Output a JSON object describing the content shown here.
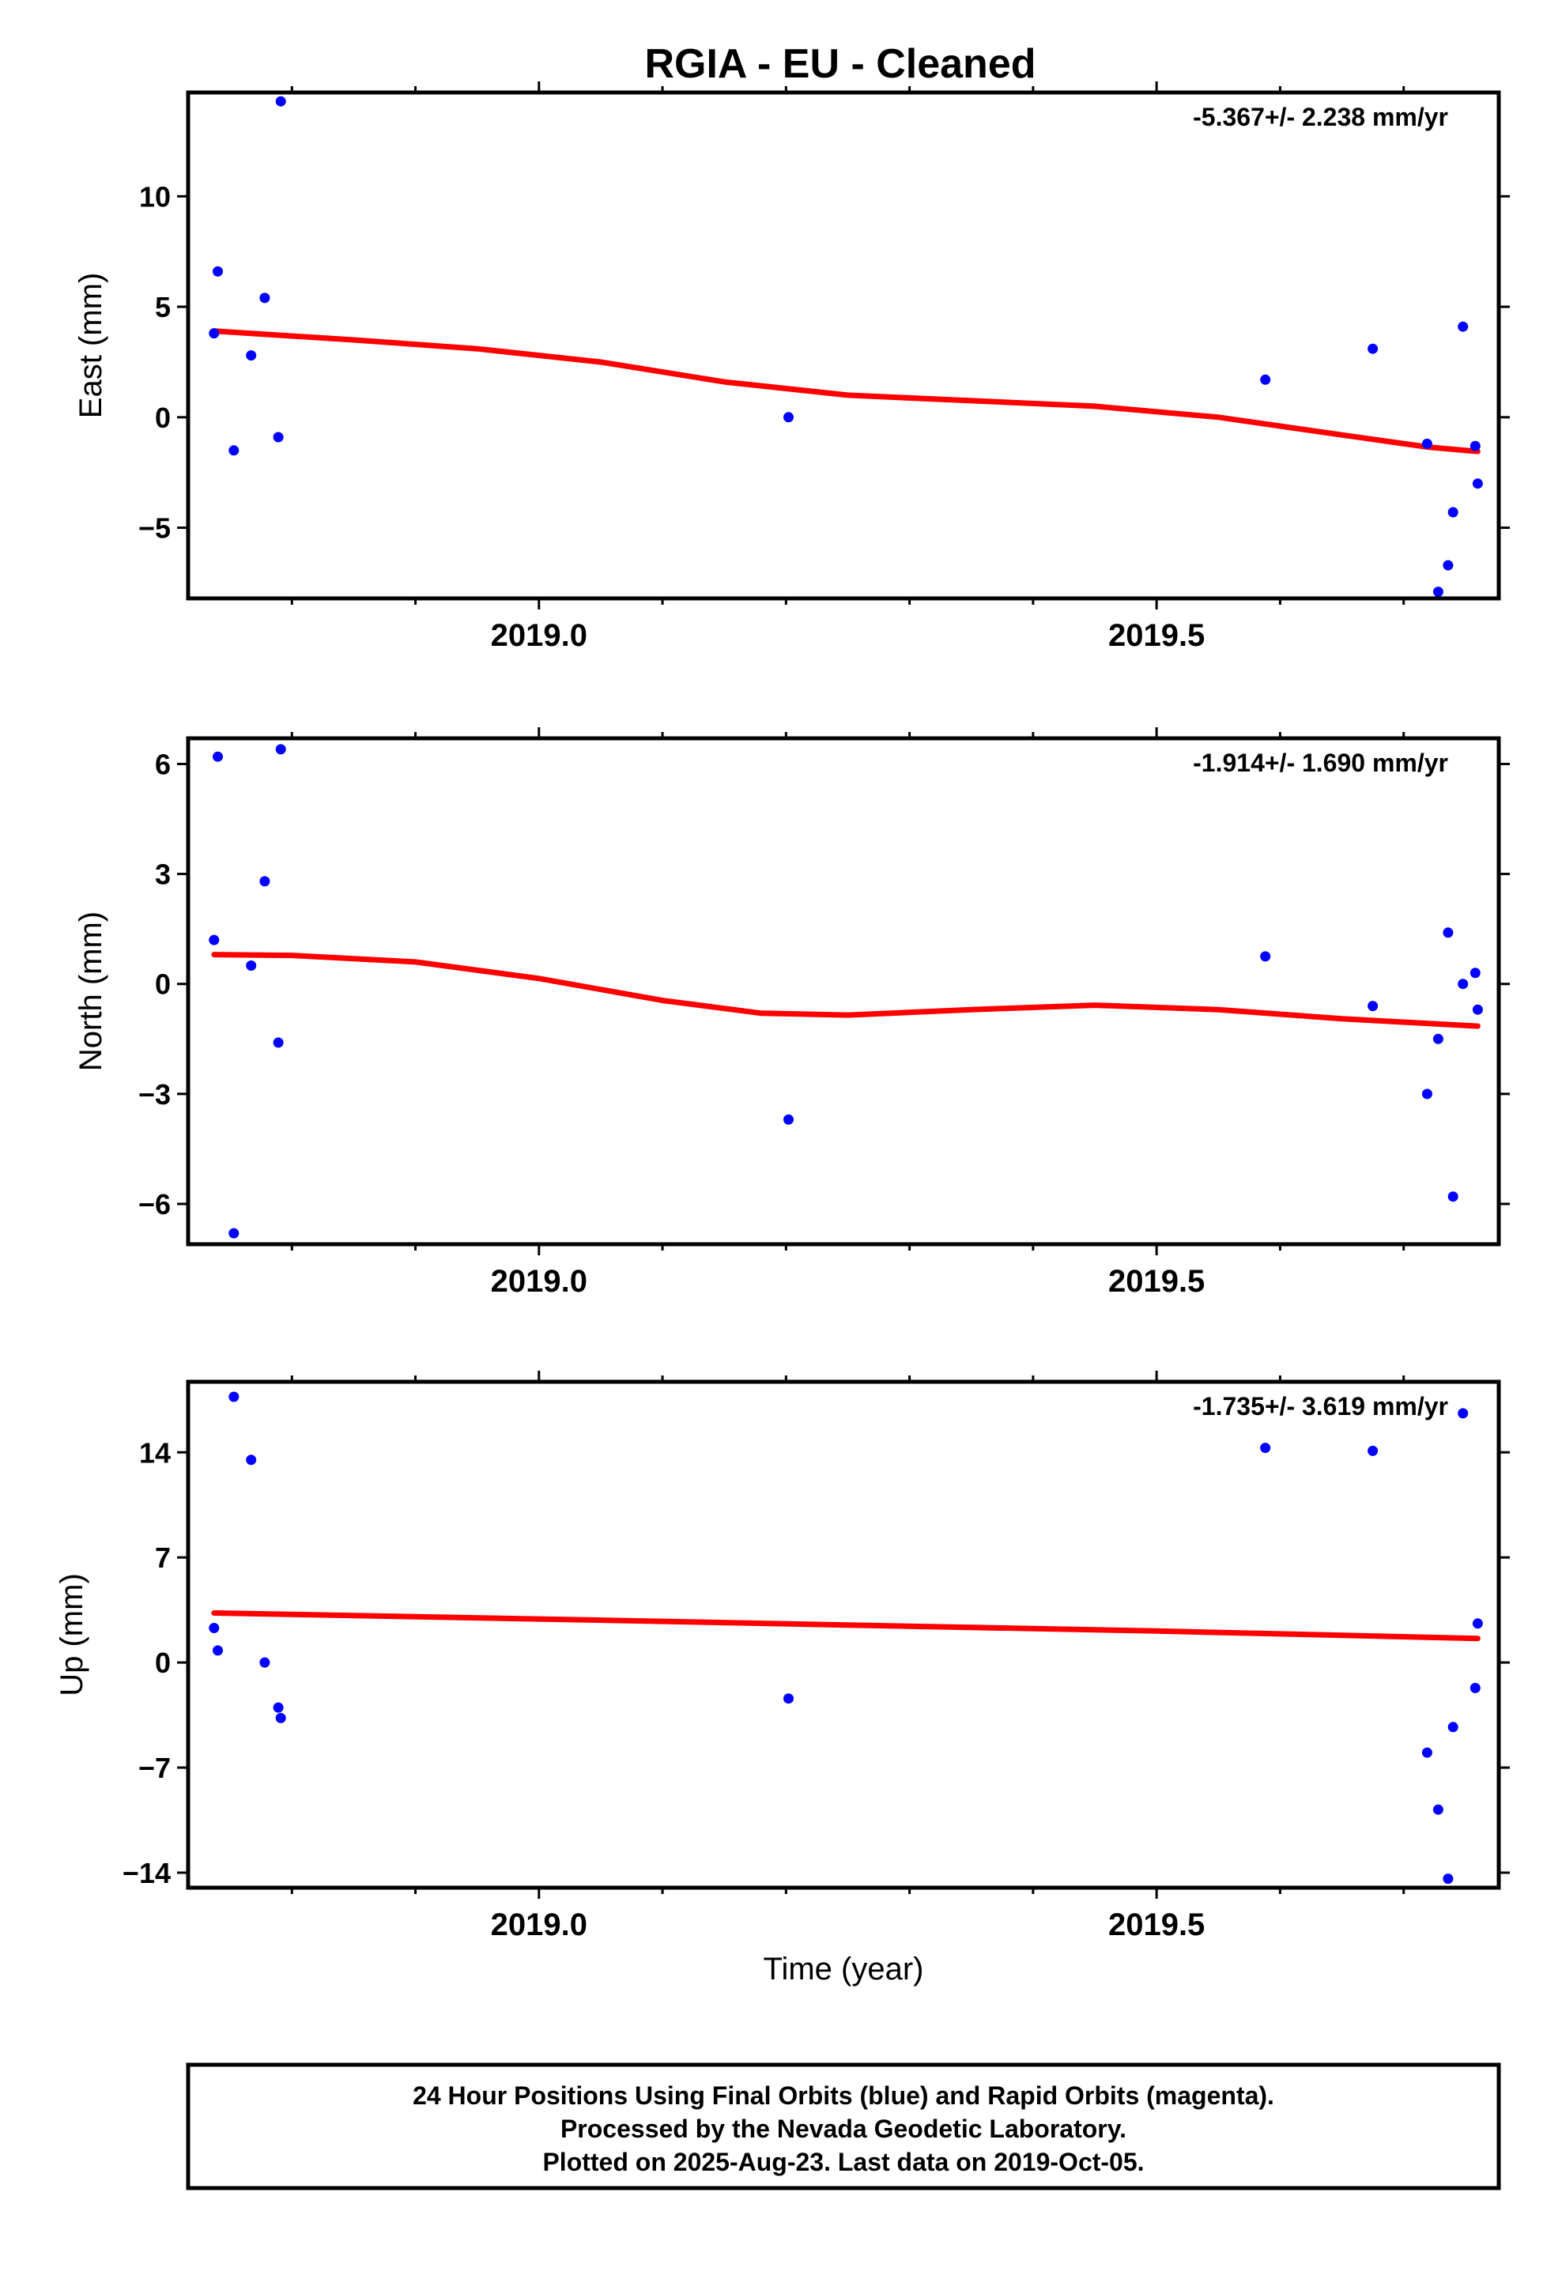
{
  "title": "RGIA  - EU - Cleaned",
  "footer_lines": [
    "24 Hour Positions Using Final Orbits (blue) and Rapid Orbits (magenta).",
    "Processed by the Nevada Geodetic Laboratory.",
    "Plotted on 2025-Aug-23. Last data on 2019-Oct-05."
  ],
  "colors": {
    "final_orbits": "#0000ff",
    "fit": "#ff0000",
    "frame": "#000000"
  },
  "chart_data": [
    {
      "type": "scatter",
      "name": "east",
      "ylabel": "East (mm)",
      "xlabel": "",
      "annotation": "-5.367+/- 2.238 mm/yr",
      "xlim": [
        2018.716,
        2019.777
      ],
      "ylim": [
        -8.2,
        14.7
      ],
      "xticks": [
        2019.0,
        2019.5
      ],
      "xtick_labels": [
        "2019.0",
        "2019.5"
      ],
      "xminor": [
        2018.8,
        2018.9,
        2019.1,
        2019.2,
        2019.3,
        2019.4,
        2019.6,
        2019.7
      ],
      "yticks": [
        -5,
        0,
        5,
        10
      ],
      "ytick_labels": [
        "−5",
        "0",
        "5",
        "10"
      ],
      "points": [
        [
          2018.737,
          3.8
        ],
        [
          2018.74,
          6.6
        ],
        [
          2018.753,
          -1.5
        ],
        [
          2018.767,
          2.8
        ],
        [
          2018.778,
          5.4
        ],
        [
          2018.789,
          -0.9
        ],
        [
          2018.791,
          14.3
        ],
        [
          2019.202,
          0.0
        ],
        [
          2019.588,
          1.7
        ],
        [
          2019.675,
          3.1
        ],
        [
          2019.719,
          -1.2
        ],
        [
          2019.728,
          -7.9
        ],
        [
          2019.736,
          -6.7
        ],
        [
          2019.74,
          -4.3
        ],
        [
          2019.748,
          4.1
        ],
        [
          2019.758,
          -1.3
        ],
        [
          2019.76,
          -3.0
        ]
      ],
      "fit": [
        [
          2018.737,
          3.9
        ],
        [
          2018.85,
          3.5
        ],
        [
          2018.95,
          3.1
        ],
        [
          2019.05,
          2.5
        ],
        [
          2019.15,
          1.6
        ],
        [
          2019.25,
          1.0
        ],
        [
          2019.35,
          0.75
        ],
        [
          2019.45,
          0.5
        ],
        [
          2019.55,
          0.0
        ],
        [
          2019.65,
          -0.8
        ],
        [
          2019.72,
          -1.35
        ],
        [
          2019.76,
          -1.55
        ]
      ]
    },
    {
      "type": "scatter",
      "name": "north",
      "ylabel": "North (mm)",
      "xlabel": "",
      "annotation": "-1.914+/- 1.690 mm/yr",
      "xlim": [
        2018.716,
        2019.777
      ],
      "ylim": [
        -7.1,
        6.7
      ],
      "xticks": [
        2019.0,
        2019.5
      ],
      "xtick_labels": [
        "2019.0",
        "2019.5"
      ],
      "xminor": [
        2018.8,
        2018.9,
        2019.1,
        2019.2,
        2019.3,
        2019.4,
        2019.6,
        2019.7
      ],
      "yticks": [
        -6,
        -3,
        0,
        3,
        6
      ],
      "ytick_labels": [
        "−6",
        "−3",
        "0",
        "3",
        "6"
      ],
      "points": [
        [
          2018.737,
          1.2
        ],
        [
          2018.74,
          6.2
        ],
        [
          2018.753,
          -6.8
        ],
        [
          2018.767,
          0.5
        ],
        [
          2018.778,
          2.8
        ],
        [
          2018.789,
          -1.6
        ],
        [
          2018.791,
          6.4
        ],
        [
          2019.202,
          -3.7
        ],
        [
          2019.588,
          0.75
        ],
        [
          2019.675,
          -0.6
        ],
        [
          2019.719,
          -3.0
        ],
        [
          2019.728,
          -1.5
        ],
        [
          2019.736,
          1.4
        ],
        [
          2019.74,
          -5.8
        ],
        [
          2019.748,
          0.0
        ],
        [
          2019.758,
          0.3
        ],
        [
          2019.76,
          -0.7
        ]
      ],
      "fit": [
        [
          2018.737,
          0.8
        ],
        [
          2018.8,
          0.78
        ],
        [
          2018.9,
          0.6
        ],
        [
          2019.0,
          0.15
        ],
        [
          2019.1,
          -0.45
        ],
        [
          2019.18,
          -0.8
        ],
        [
          2019.25,
          -0.85
        ],
        [
          2019.35,
          -0.7
        ],
        [
          2019.45,
          -0.58
        ],
        [
          2019.55,
          -0.7
        ],
        [
          2019.65,
          -0.95
        ],
        [
          2019.76,
          -1.15
        ]
      ]
    },
    {
      "type": "scatter",
      "name": "up",
      "ylabel": "Up (mm)",
      "xlabel": "Time (year)",
      "annotation": "-1.735+/- 3.619 mm/yr",
      "xlim": [
        2018.716,
        2019.777
      ],
      "ylim": [
        -15,
        18.7
      ],
      "xticks": [
        2019.0,
        2019.5
      ],
      "xtick_labels": [
        "2019.0",
        "2019.5"
      ],
      "xminor": [
        2018.8,
        2018.9,
        2019.1,
        2019.2,
        2019.3,
        2019.4,
        2019.6,
        2019.7
      ],
      "yticks": [
        -14,
        -7,
        0,
        7,
        14
      ],
      "ytick_labels": [
        "−14",
        "−7",
        "0",
        "7",
        "14"
      ],
      "points": [
        [
          2018.737,
          2.3
        ],
        [
          2018.74,
          0.8
        ],
        [
          2018.753,
          17.7
        ],
        [
          2018.767,
          13.5
        ],
        [
          2018.778,
          0.0
        ],
        [
          2018.789,
          -3.0
        ],
        [
          2018.791,
          -3.7
        ],
        [
          2019.202,
          -2.4
        ],
        [
          2019.588,
          14.3
        ],
        [
          2019.675,
          14.1
        ],
        [
          2019.719,
          -6.0
        ],
        [
          2019.728,
          -9.8
        ],
        [
          2019.736,
          -14.4
        ],
        [
          2019.74,
          -4.3
        ],
        [
          2019.748,
          16.6
        ],
        [
          2019.758,
          -1.7
        ],
        [
          2019.76,
          2.6
        ]
      ],
      "fit": [
        [
          2018.737,
          3.3
        ],
        [
          2019.0,
          2.9
        ],
        [
          2019.25,
          2.5
        ],
        [
          2019.5,
          2.1
        ],
        [
          2019.76,
          1.6
        ]
      ]
    }
  ]
}
